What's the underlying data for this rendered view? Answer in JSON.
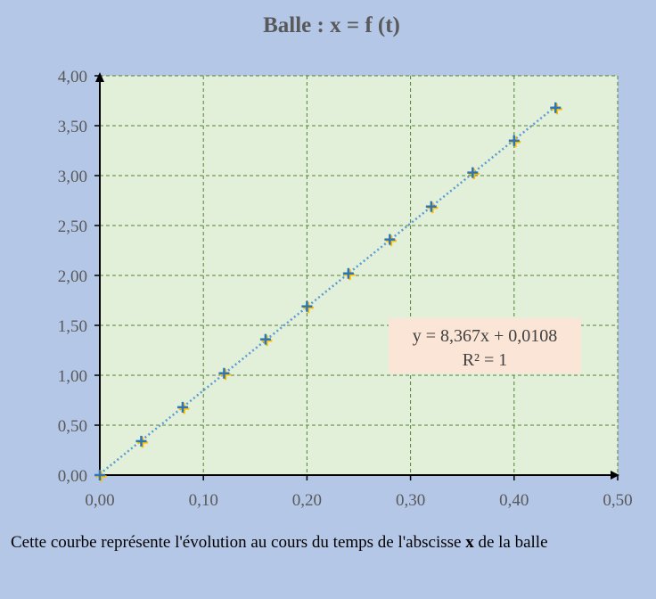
{
  "chart_data": {
    "type": "scatter",
    "title": "Balle : x = f (t)",
    "xlabel": "",
    "ylabel": "",
    "xlim": [
      0,
      0.5
    ],
    "ylim": [
      0,
      4
    ],
    "x_ticks": [
      "0,00",
      "0,10",
      "0,20",
      "0,30",
      "0,40",
      "0,50"
    ],
    "y_ticks": [
      "0,00",
      "0,50",
      "1,00",
      "1,50",
      "2,00",
      "2,50",
      "3,00",
      "3,50",
      "4,00"
    ],
    "grid": true,
    "x": [
      0,
      0.04,
      0.08,
      0.12,
      0.16,
      0.2,
      0.24,
      0.28,
      0.32,
      0.36,
      0.4,
      0.44
    ],
    "y": [
      0,
      0.34,
      0.68,
      1.02,
      1.36,
      1.69,
      2.02,
      2.36,
      2.69,
      3.03,
      3.35,
      3.68
    ],
    "trendline": {
      "type": "linear",
      "slope": 8.367,
      "intercept": 0.0108,
      "equation": "y = 8,367x + 0,0108",
      "r2": "R² = 1"
    },
    "colors": {
      "plot_bg": "#e2f0d9",
      "grid": "#548235",
      "marker": "#2e75b6",
      "marker_shadow": "#ffc000",
      "trendline": "#5b9bd5",
      "label_box": "#fbe5d6"
    }
  },
  "caption": {
    "before": "Cette courbe représente l'évolution au cours du temps de l'abscisse ",
    "bold": "x",
    "after": " de la balle"
  }
}
